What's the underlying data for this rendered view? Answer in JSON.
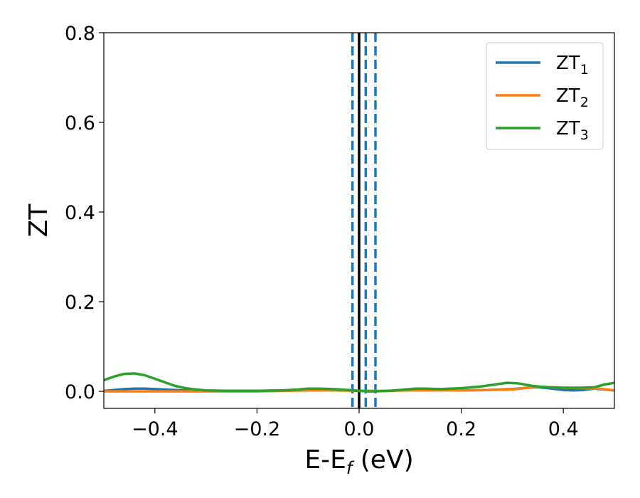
{
  "chart_data": {
    "type": "line",
    "title": "",
    "xlabel": {
      "main": "E-E",
      "sub": "f",
      "suffix": " (eV)"
    },
    "ylabel": "ZT",
    "xlim": [
      -0.5,
      0.5
    ],
    "ylim": [
      -0.038,
      0.8
    ],
    "xticks": [
      -0.4,
      -0.2,
      0.0,
      0.2,
      0.4
    ],
    "xtick_labels": [
      "−0.4",
      "−0.2",
      "0.0",
      "0.2",
      "0.4"
    ],
    "yticks": [
      0.0,
      0.2,
      0.4,
      0.6,
      0.8
    ],
    "ytick_labels": [
      "0.0",
      "0.2",
      "0.4",
      "0.6",
      "0.8"
    ],
    "grid": false,
    "legend_position": "top-right",
    "series": [
      {
        "name": {
          "main": "ZT",
          "sub": "1"
        },
        "color": "#1f77b4",
        "points": [
          [
            -0.5,
            0.001
          ],
          [
            -0.48,
            0.003
          ],
          [
            -0.46,
            0.005
          ],
          [
            -0.44,
            0.006
          ],
          [
            -0.42,
            0.006
          ],
          [
            -0.4,
            0.005
          ],
          [
            -0.38,
            0.004
          ],
          [
            -0.36,
            0.003
          ],
          [
            -0.34,
            0.002
          ],
          [
            -0.32,
            0.001
          ],
          [
            -0.3,
            0.001
          ],
          [
            -0.2,
            0.001
          ],
          [
            -0.15,
            0.002
          ],
          [
            -0.12,
            0.003
          ],
          [
            -0.1,
            0.004
          ],
          [
            -0.07,
            0.004
          ],
          [
            -0.04,
            0.003
          ],
          [
            -0.02,
            0.002
          ],
          [
            0.0,
            0.001
          ],
          [
            0.02,
            0.0
          ],
          [
            0.05,
            0.001
          ],
          [
            0.08,
            0.002
          ],
          [
            0.1,
            0.003
          ],
          [
            0.12,
            0.003
          ],
          [
            0.15,
            0.002
          ],
          [
            0.2,
            0.002
          ],
          [
            0.25,
            0.003
          ],
          [
            0.3,
            0.005
          ],
          [
            0.33,
            0.008
          ],
          [
            0.35,
            0.009
          ],
          [
            0.37,
            0.007
          ],
          [
            0.4,
            0.003
          ],
          [
            0.42,
            0.002
          ],
          [
            0.44,
            0.003
          ],
          [
            0.46,
            0.006
          ],
          [
            0.48,
            0.004
          ],
          [
            0.5,
            0.002
          ]
        ]
      },
      {
        "name": {
          "main": "ZT",
          "sub": "2"
        },
        "color": "#ff7f0e",
        "points": [
          [
            -0.5,
            0.0
          ],
          [
            -0.4,
            0.0
          ],
          [
            -0.3,
            0.0
          ],
          [
            -0.2,
            0.0
          ],
          [
            -0.1,
            0.002
          ],
          [
            -0.05,
            0.002
          ],
          [
            0.0,
            0.001
          ],
          [
            0.05,
            0.001
          ],
          [
            0.1,
            0.002
          ],
          [
            0.15,
            0.002
          ],
          [
            0.2,
            0.002
          ],
          [
            0.25,
            0.003
          ],
          [
            0.3,
            0.004
          ],
          [
            0.33,
            0.008
          ],
          [
            0.35,
            0.01
          ],
          [
            0.38,
            0.009
          ],
          [
            0.4,
            0.008
          ],
          [
            0.44,
            0.007
          ],
          [
            0.47,
            0.006
          ],
          [
            0.5,
            0.002
          ]
        ]
      },
      {
        "name": {
          "main": "ZT",
          "sub": "3"
        },
        "color": "#2ca02c",
        "points": [
          [
            -0.5,
            0.025
          ],
          [
            -0.48,
            0.033
          ],
          [
            -0.46,
            0.039
          ],
          [
            -0.44,
            0.04
          ],
          [
            -0.42,
            0.036
          ],
          [
            -0.4,
            0.028
          ],
          [
            -0.38,
            0.02
          ],
          [
            -0.36,
            0.012
          ],
          [
            -0.34,
            0.007
          ],
          [
            -0.32,
            0.004
          ],
          [
            -0.3,
            0.002
          ],
          [
            -0.25,
            0.001
          ],
          [
            -0.2,
            0.001
          ],
          [
            -0.15,
            0.002
          ],
          [
            -0.12,
            0.004
          ],
          [
            -0.1,
            0.006
          ],
          [
            -0.08,
            0.006
          ],
          [
            -0.05,
            0.005
          ],
          [
            -0.02,
            0.003
          ],
          [
            0.0,
            0.001
          ],
          [
            0.03,
            0.0
          ],
          [
            0.06,
            0.001
          ],
          [
            0.09,
            0.004
          ],
          [
            0.11,
            0.006
          ],
          [
            0.13,
            0.006
          ],
          [
            0.16,
            0.005
          ],
          [
            0.2,
            0.007
          ],
          [
            0.24,
            0.011
          ],
          [
            0.27,
            0.016
          ],
          [
            0.29,
            0.019
          ],
          [
            0.31,
            0.018
          ],
          [
            0.34,
            0.012
          ],
          [
            0.37,
            0.009
          ],
          [
            0.4,
            0.008
          ],
          [
            0.43,
            0.008
          ],
          [
            0.46,
            0.009
          ],
          [
            0.48,
            0.015
          ],
          [
            0.5,
            0.019
          ]
        ]
      }
    ],
    "vertical_lines": [
      {
        "x": 0.0,
        "style": "solid",
        "color": "#000000"
      },
      {
        "x": -0.013,
        "style": "dashed",
        "color": "#1f77b4"
      },
      {
        "x": 0.013,
        "style": "dashed",
        "color": "#1f77b4"
      },
      {
        "x": 0.032,
        "style": "dashed",
        "color": "#1f77b4"
      }
    ]
  }
}
